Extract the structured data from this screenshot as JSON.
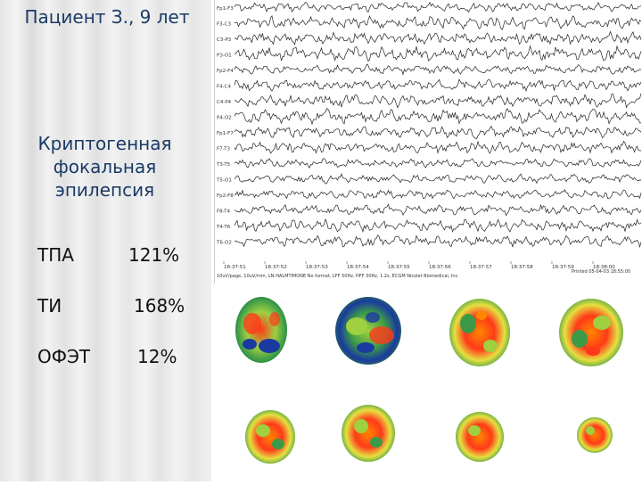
{
  "slide": {
    "patient_title": "Пациент З., 9 лет",
    "diagnosis": "Криптогенная фокальная эпилепсия"
  },
  "metrics": [
    {
      "label": "ТПА",
      "value": "121%"
    },
    {
      "label": "ТИ",
      "value": "168%"
    },
    {
      "label": "ОФЭТ",
      "value": "12%"
    }
  ],
  "eeg": {
    "channels": [
      "Fp1-F3",
      "F3-C3",
      "C3-P3",
      "P3-O1",
      "Fp2-F4",
      "F4-C4",
      "C4-P4",
      "P4-O2",
      "Fp1-F7",
      "F7-T3",
      "T3-T5",
      "T5-O1",
      "Fp2-F8",
      "F8-T4",
      "T4-T6",
      "T6-O2"
    ],
    "timestamps": [
      "18:37:51",
      "18:37:52",
      "18:37:53",
      "18:37:54",
      "18:37:55",
      "18:37:56",
      "18:37:57",
      "18:37:58",
      "18:37:59",
      "18:38:00"
    ],
    "footer": "10uV/page, 10uV/mm, LN-HALMTIMONE No format, LFF 50Hz, HFF 30Hz, 1.2s, ECGM Nicolet Biomedical, Inc.",
    "date": "Printed 05-04-03 18:55:00"
  },
  "spect": {
    "colors": {
      "background": "#3a9a48",
      "low": "#1a3aa0",
      "mid": "#9ed040",
      "high": "#ff3a1a",
      "peak": "#ff8800"
    }
  }
}
